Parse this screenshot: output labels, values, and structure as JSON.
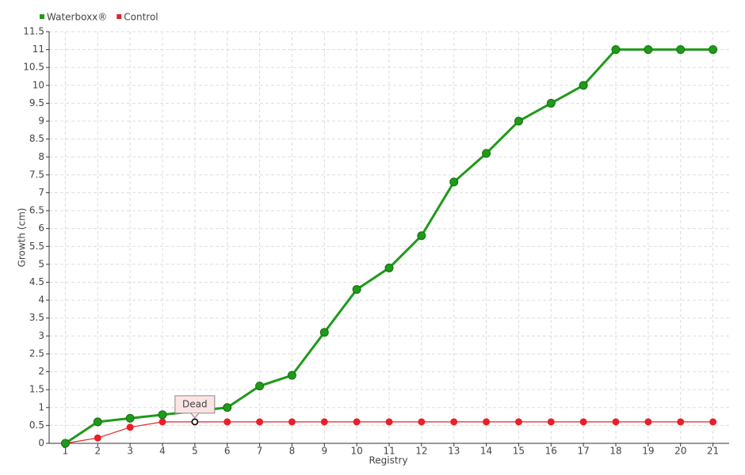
{
  "chart_data": {
    "type": "line",
    "y_label": "Growth (cm)",
    "x_label": "Registry",
    "categories": [
      "1",
      "2",
      "3",
      "4",
      "5",
      "6",
      "7",
      "8",
      "9",
      "10",
      "11",
      "12",
      "13",
      "14",
      "15",
      "16",
      "17",
      "18",
      "19",
      "20",
      "21"
    ],
    "series": [
      {
        "name": "Waterboxx®",
        "color": "#1f9a1a",
        "values": [
          0,
          0.6,
          0.7,
          0.8,
          0.9,
          1.0,
          1.6,
          1.9,
          3.1,
          4.3,
          4.9,
          5.8,
          7.3,
          8.1,
          9.0,
          9.5,
          10.0,
          11,
          11,
          11,
          11
        ]
      },
      {
        "name": "Control",
        "color": "#e8202a",
        "values": [
          0,
          0.15,
          0.45,
          0.6,
          0.6,
          0.6,
          0.6,
          0.6,
          0.6,
          0.6,
          0.6,
          0.6,
          0.6,
          0.6,
          0.6,
          0.6,
          0.6,
          0.6,
          0.6,
          0.6,
          0.6
        ]
      }
    ],
    "annotations": [
      {
        "text": "Dead",
        "series": "Control",
        "x": "5"
      }
    ],
    "ylim": [
      0,
      11.5
    ],
    "yticks": [
      0,
      0.5,
      1,
      1.5,
      2,
      2.5,
      3,
      3.5,
      4,
      4.5,
      5,
      5.5,
      6,
      6.5,
      7,
      7.5,
      8,
      8.5,
      9,
      9.5,
      10,
      10.5,
      11,
      11.5
    ],
    "grid": true,
    "legend": "top-left"
  }
}
